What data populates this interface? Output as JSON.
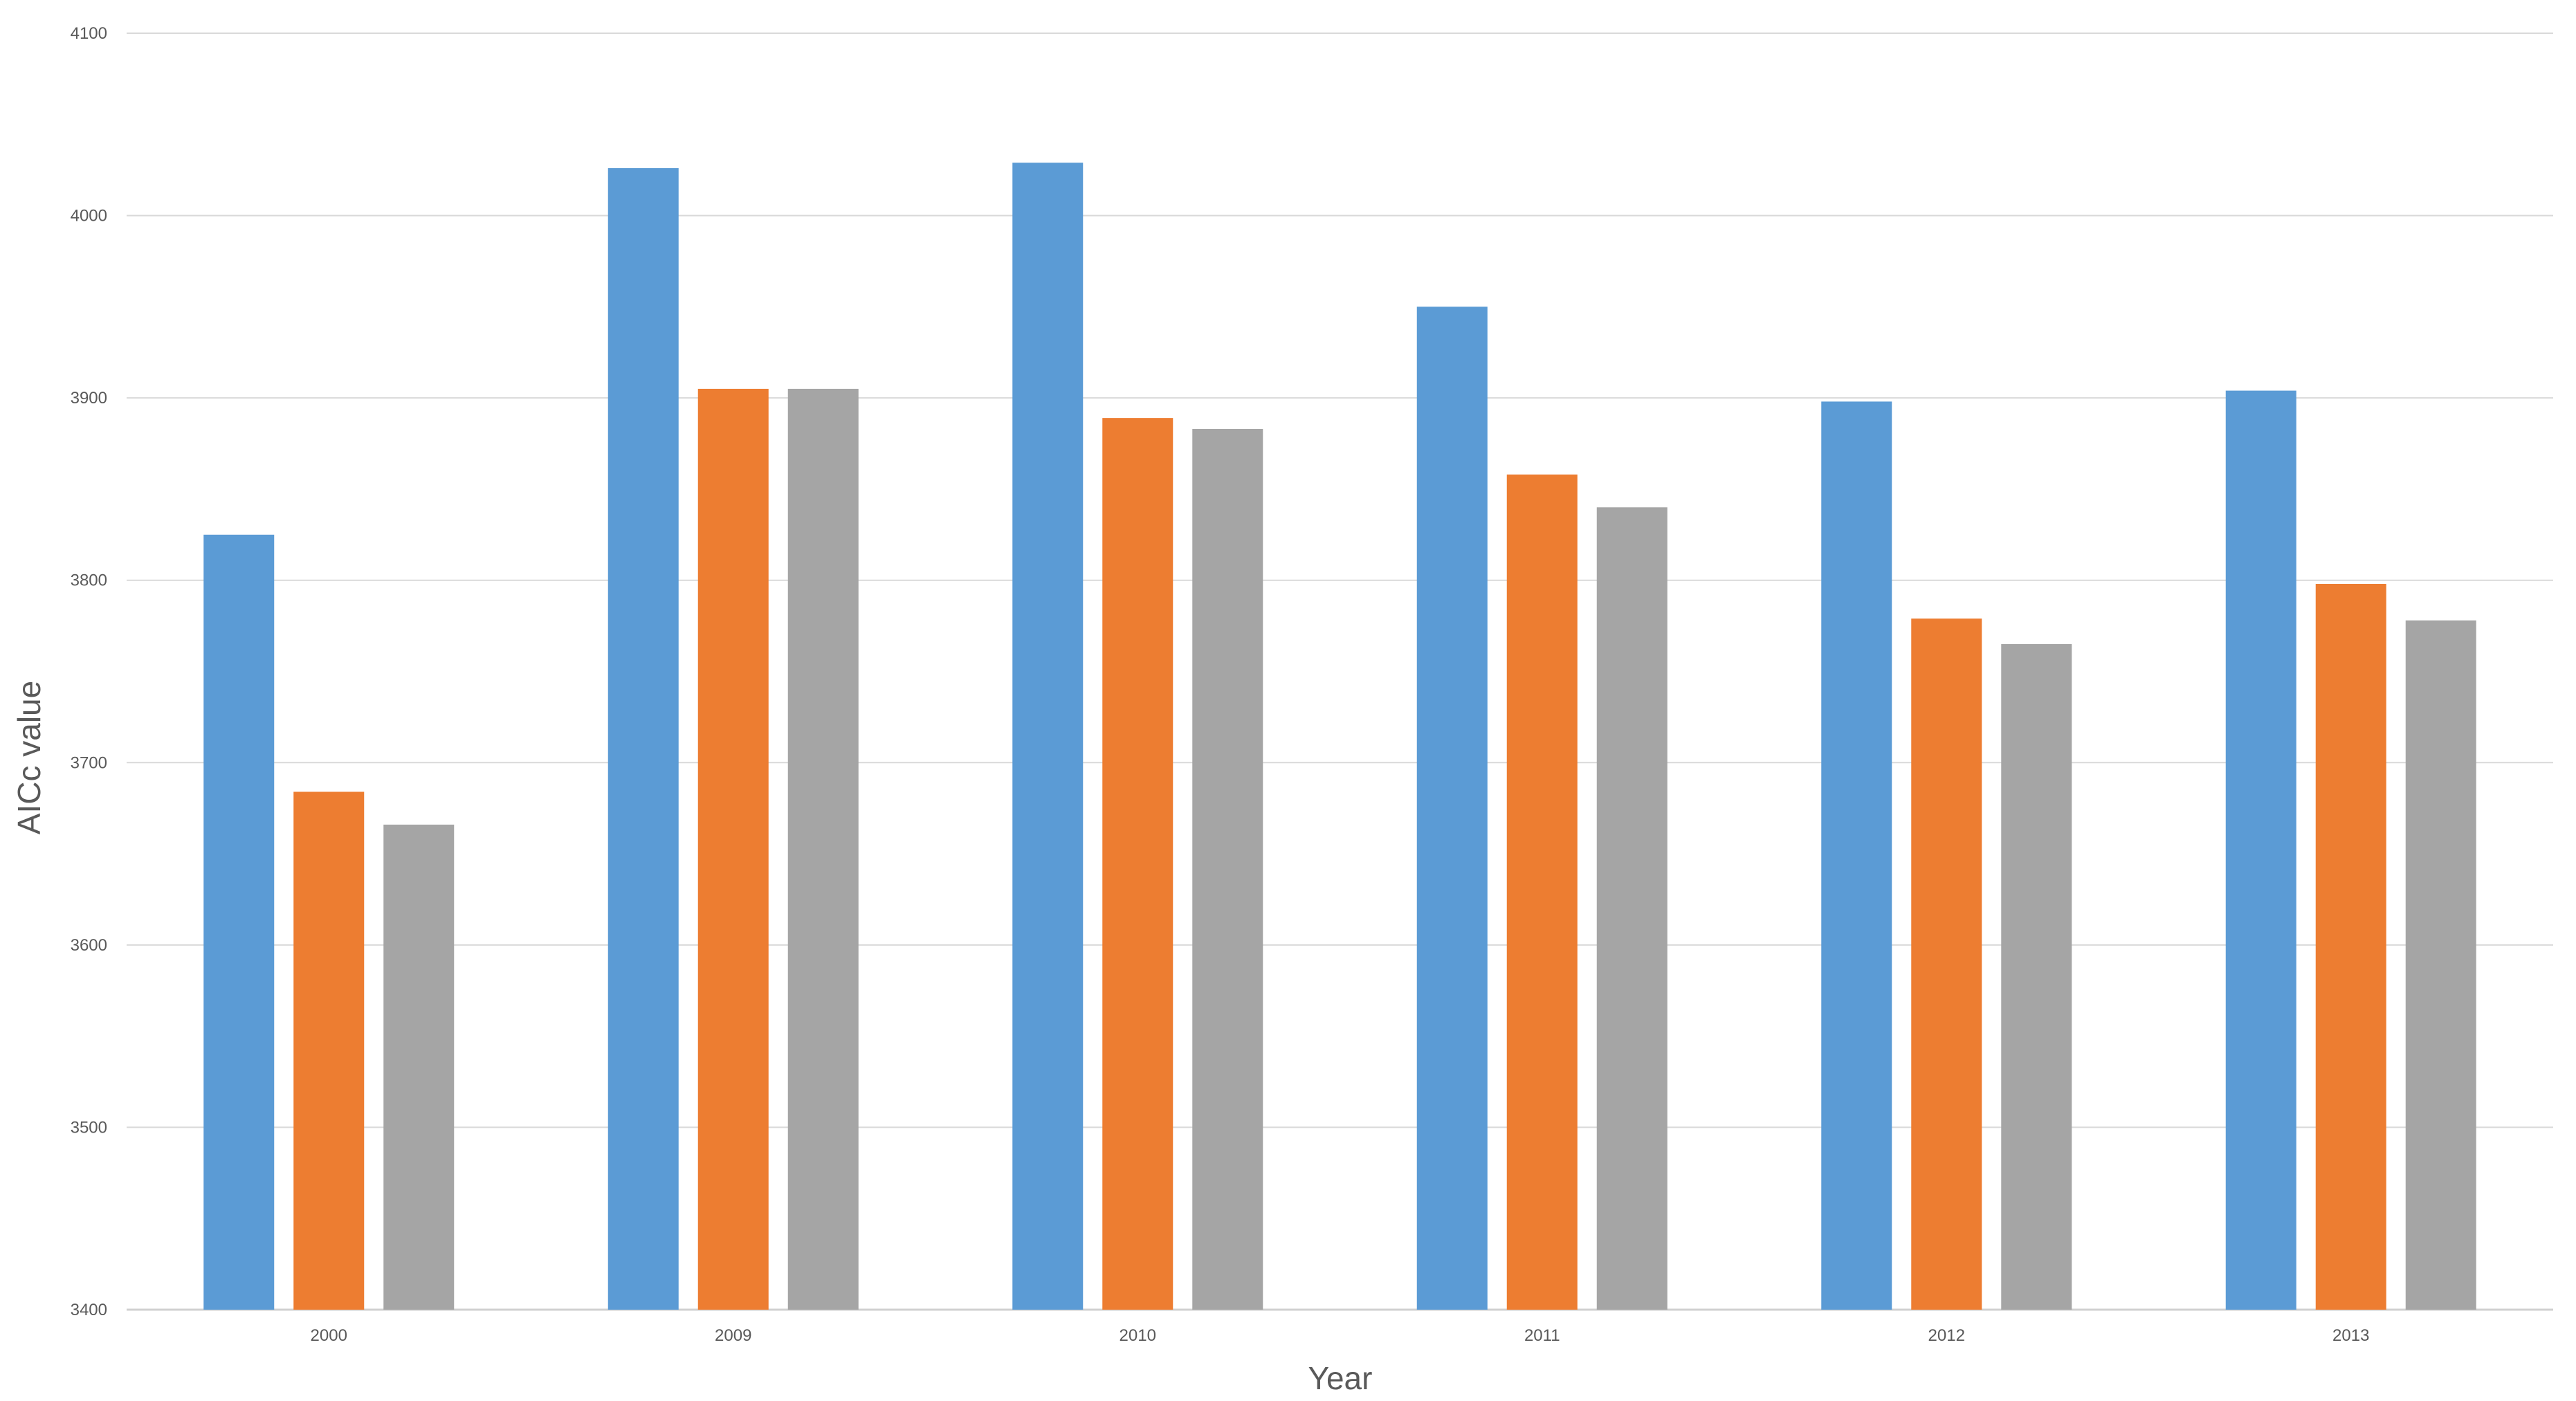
{
  "chart_data": {
    "type": "bar",
    "title": "",
    "xlabel": "Year",
    "ylabel": "AICc value",
    "categories": [
      "2000",
      "2009",
      "2010",
      "2011",
      "2012",
      "2013"
    ],
    "series": [
      {
        "color": "#5b9bd5",
        "values": [
          3825,
          4026,
          4029,
          3950,
          3898,
          3904
        ]
      },
      {
        "color": "#ed7d31",
        "values": [
          3684,
          3905,
          3889,
          3858,
          3779,
          3798
        ]
      },
      {
        "color": "#a5a5a5",
        "values": [
          3666,
          3905,
          3883,
          3840,
          3765,
          3778
        ]
      }
    ],
    "ylim": [
      3400,
      4100
    ],
    "yticks": [
      3400,
      3500,
      3600,
      3700,
      3800,
      3900,
      4000,
      4100
    ],
    "grid": true,
    "legend": "none"
  }
}
